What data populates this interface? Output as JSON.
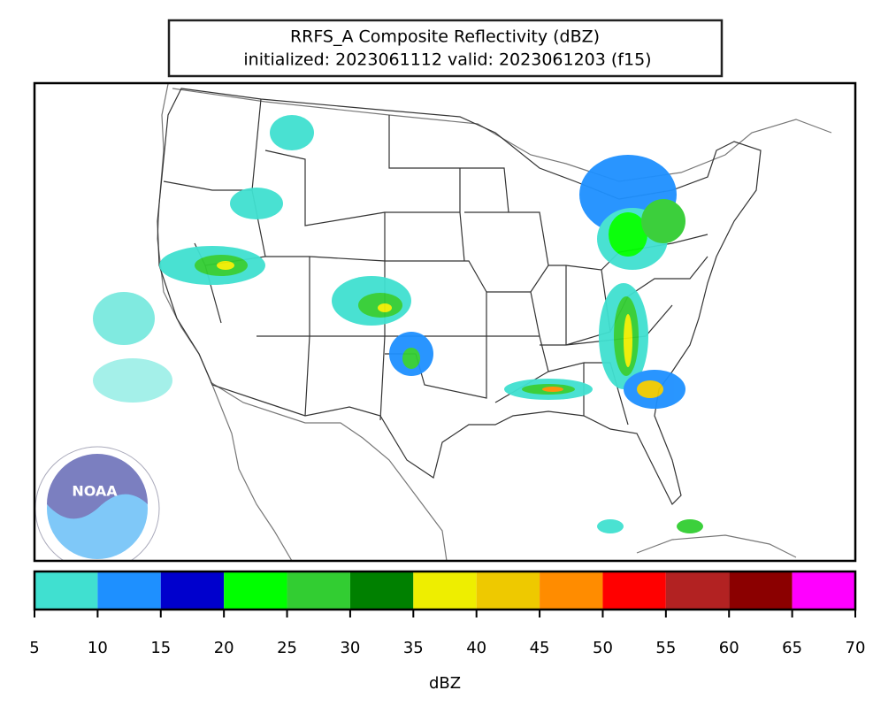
{
  "title": "RRFS_A Composite Reflectivity (dBZ)",
  "subtitle": "initialized: 2023061112 valid: 2023061203 (f15)",
  "logo": {
    "text": "NOAA"
  },
  "colorbar": {
    "label": "dBZ",
    "ticks": [
      5,
      10,
      15,
      20,
      25,
      30,
      35,
      40,
      45,
      50,
      55,
      60,
      65,
      70
    ],
    "colors": [
      "#40e0d0",
      "#1e90ff",
      "#0000cd",
      "#00ff00",
      "#32cd32",
      "#008000",
      "#eeee00",
      "#eec900",
      "#ff8c00",
      "#ff0000",
      "#b22222",
      "#8b0000",
      "#ff00ff"
    ]
  }
}
